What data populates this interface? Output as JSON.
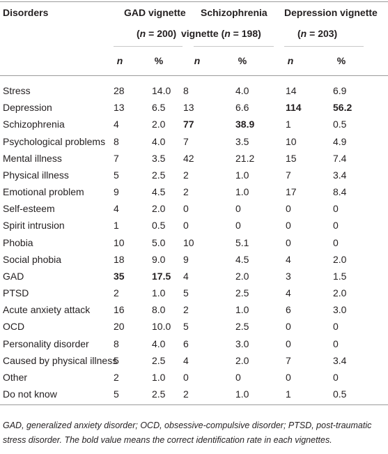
{
  "table": {
    "header": {
      "label": "Disorders",
      "groups": [
        {
          "line1": "GAD vignette",
          "line2": [
            "(",
            "n",
            " = 200)"
          ]
        },
        {
          "line1": "Schizophrenia",
          "line2": [
            "vignette (",
            "n",
            " = 198)"
          ]
        },
        {
          "line1": "Depression vignette",
          "line2": [
            "(",
            "n",
            " = 203)"
          ]
        }
      ],
      "subheaders": [
        "n",
        "%",
        "n",
        "%",
        "n",
        "%"
      ]
    },
    "rows": [
      [
        "Stress",
        "28",
        "14.0",
        "8",
        "4.0",
        "14",
        "6.9"
      ],
      [
        "Depression",
        "13",
        "6.5",
        "13",
        "6.6",
        "114",
        "56.2"
      ],
      [
        "Schizophrenia",
        "4",
        "2.0",
        "77",
        "38.9",
        "1",
        "0.5"
      ],
      [
        "Psychological problems",
        "8",
        "4.0",
        "7",
        "3.5",
        "10",
        "4.9"
      ],
      [
        "Mental illness",
        "7",
        "3.5",
        "42",
        "21.2",
        "15",
        "7.4"
      ],
      [
        "Physical illness",
        "5",
        "2.5",
        "2",
        "1.0",
        "7",
        "3.4"
      ],
      [
        "Emotional problem",
        "9",
        "4.5",
        "2",
        "1.0",
        "17",
        "8.4"
      ],
      [
        "Self-esteem",
        "4",
        "2.0",
        "0",
        "0",
        "0",
        "0"
      ],
      [
        "Spirit intrusion",
        "1",
        "0.5",
        "0",
        "0",
        "0",
        "0"
      ],
      [
        "Phobia",
        "10",
        "5.0",
        "10",
        "5.1",
        "0",
        "0"
      ],
      [
        "Social phobia",
        "18",
        "9.0",
        "9",
        "4.5",
        "4",
        "2.0"
      ],
      [
        "GAD",
        "35",
        "17.5",
        "4",
        "2.0",
        "3",
        "1.5"
      ],
      [
        "PTSD",
        "2",
        "1.0",
        "5",
        "2.5",
        "4",
        "2.0"
      ],
      [
        "Acute anxiety attack",
        "16",
        "8.0",
        "2",
        "1.0",
        "6",
        "3.0"
      ],
      [
        "OCD",
        "20",
        "10.0",
        "5",
        "2.5",
        "0",
        "0"
      ],
      [
        "Personality disorder",
        "8",
        "4.0",
        "6",
        "3.0",
        "0",
        "0"
      ],
      [
        "Caused by physical illness",
        "5",
        "2.5",
        "4",
        "2.0",
        "7",
        "3.4"
      ],
      [
        "Other",
        "2",
        "1.0",
        "0",
        "0",
        "0",
        "0"
      ],
      [
        "Do not know",
        "5",
        "2.5",
        "2",
        "1.0",
        "1",
        "0.5"
      ]
    ],
    "bold_cells": [
      [
        1,
        5
      ],
      [
        1,
        6
      ],
      [
        2,
        3
      ],
      [
        2,
        4
      ],
      [
        11,
        1
      ],
      [
        11,
        2
      ]
    ],
    "footnote": "GAD, generalized anxiety disorder; OCD, obsessive-compulsive disorder; PTSD, post-traumatic stress disorder. The bold value means the correct identification rate in each vignettes."
  }
}
